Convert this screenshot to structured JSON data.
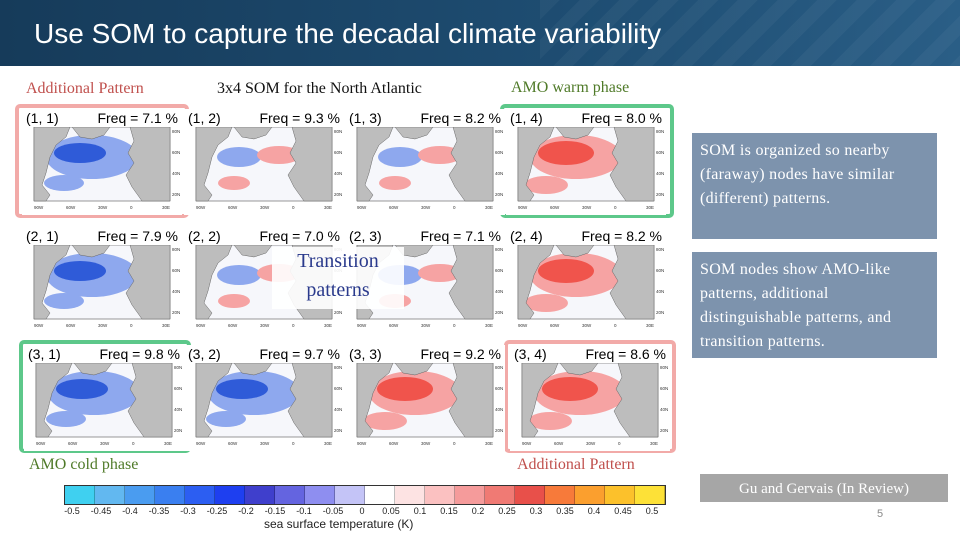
{
  "slide": {
    "title": "Use SOM to capture the decadal climate variability",
    "page_number": "5",
    "citation": "Gu and Gervais (In Review)"
  },
  "labels": {
    "additional_pattern_top": "Additional Pattern",
    "som_grid": "3x4 SOM for the North Atlantic",
    "amo_warm": "AMO warm phase",
    "amo_cold": "AMO cold phase",
    "additional_pattern_bottom": "Additional Pattern",
    "transition": "Transition patterns"
  },
  "notes": {
    "organized": "SOM is organized so nearby (faraway) nodes have similar (different) patterns.",
    "nodes": "SOM nodes show AMO-like patterns, additional distinguishable patterns, and transition patterns."
  },
  "som_nodes": [
    {
      "id": "(1, 1)",
      "freq": "Freq = 7.1 %",
      "pattern": "cold"
    },
    {
      "id": "(1, 2)",
      "freq": "Freq = 9.3 %",
      "pattern": "neutral"
    },
    {
      "id": "(1, 3)",
      "freq": "Freq = 8.2 %",
      "pattern": "neutral"
    },
    {
      "id": "(1, 4)",
      "freq": "Freq = 8.0 %",
      "pattern": "warm"
    },
    {
      "id": "(2, 1)",
      "freq": "Freq = 7.9 %",
      "pattern": "cold"
    },
    {
      "id": "(2, 2)",
      "freq": "Freq = 7.0 %",
      "pattern": "neutral"
    },
    {
      "id": "(2, 3)",
      "freq": "Freq = 7.1 %",
      "pattern": "neutral"
    },
    {
      "id": "(2, 4)",
      "freq": "Freq = 8.2 %",
      "pattern": "warm"
    },
    {
      "id": "(3, 1)",
      "freq": "Freq = 9.8 %",
      "pattern": "cold"
    },
    {
      "id": "(3, 2)",
      "freq": "Freq = 9.7 %",
      "pattern": "cold"
    },
    {
      "id": "(3, 3)",
      "freq": "Freq = 9.2 %",
      "pattern": "warm"
    },
    {
      "id": "(3, 4)",
      "freq": "Freq = 8.6 %",
      "pattern": "warm"
    }
  ],
  "map_axes": {
    "lon_ticks": [
      "90W",
      "60W",
      "30W",
      "0",
      "30E"
    ],
    "lat_ticks": [
      "20N",
      "40N",
      "60N",
      "80N"
    ]
  },
  "colorbar": {
    "label": "sea surface temperature (K)",
    "ticks": [
      "-0.5",
      "-0.45",
      "-0.4",
      "-0.35",
      "-0.3",
      "-0.25",
      "-0.2",
      "-0.15",
      "-0.1",
      "-0.05",
      "0",
      "0.05",
      "0.1",
      "0.15",
      "0.2",
      "0.25",
      "0.3",
      "0.35",
      "0.4",
      "0.45",
      "0.5"
    ],
    "colors": [
      "#3fd0f0",
      "#62b8f0",
      "#4a9cf0",
      "#3a7ff0",
      "#2c5ef2",
      "#1e3ff0",
      "#3f3fcc",
      "#6464e0",
      "#8e8ef0",
      "#c4c4f7",
      "#ffffff",
      "#fde3e3",
      "#fbc1c1",
      "#f59b9b",
      "#f07a74",
      "#e8504a",
      "#f77a3a",
      "#fb9f2e",
      "#fcc12b",
      "#fde137"
    ]
  },
  "map_colors": {
    "ocean": "#f6f7fb",
    "land": "#bdbdbd",
    "warm": "#f0544c",
    "warm_light": "#f6a3a3",
    "cold": "#2f5bd8",
    "cold_light": "#8ea8ee"
  }
}
